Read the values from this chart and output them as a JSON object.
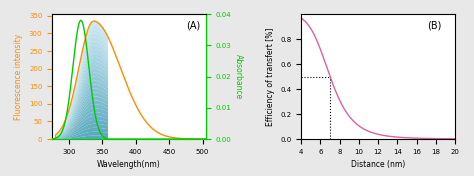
{
  "panel_A": {
    "title": "(A)",
    "xlabel": "Wavelength(nm)",
    "ylabel_left": "Fluorescence intensity",
    "ylabel_right": "Absorbance",
    "xlim": [
      275,
      505
    ],
    "ylim_left": [
      0,
      355
    ],
    "ylim_right": [
      0,
      0.04
    ],
    "yticks_left": [
      0,
      50,
      100,
      150,
      200,
      250,
      300,
      350
    ],
    "yticks_right": [
      0.0,
      0.01,
      0.02,
      0.03,
      0.04
    ],
    "xticks": [
      300,
      350,
      400,
      450,
      500
    ],
    "fluorescence_color": "#ff8c00",
    "absorbance_color": "#00cc00",
    "fill_color_dark": "#3a9ab0",
    "fill_color_light": "#c8e8f0",
    "spine_left_color": "#ff8c00",
    "spine_bottom_color": "#00cc00",
    "spine_right_color": "#00cc00"
  },
  "panel_B": {
    "title": "(B)",
    "xlabel": "Distance (nm)",
    "ylabel": "Efficiency of transfert [%]",
    "xlim": [
      4,
      20
    ],
    "ylim": [
      0,
      1.0
    ],
    "xticks": [
      4,
      6,
      8,
      10,
      12,
      14,
      16,
      18,
      20
    ],
    "yticks": [
      0.0,
      0.2,
      0.4,
      0.6,
      0.8
    ],
    "curve_color": "#e060a0",
    "R0": 7.0,
    "dotted_x": 7.0,
    "dotted_y": 0.5
  }
}
